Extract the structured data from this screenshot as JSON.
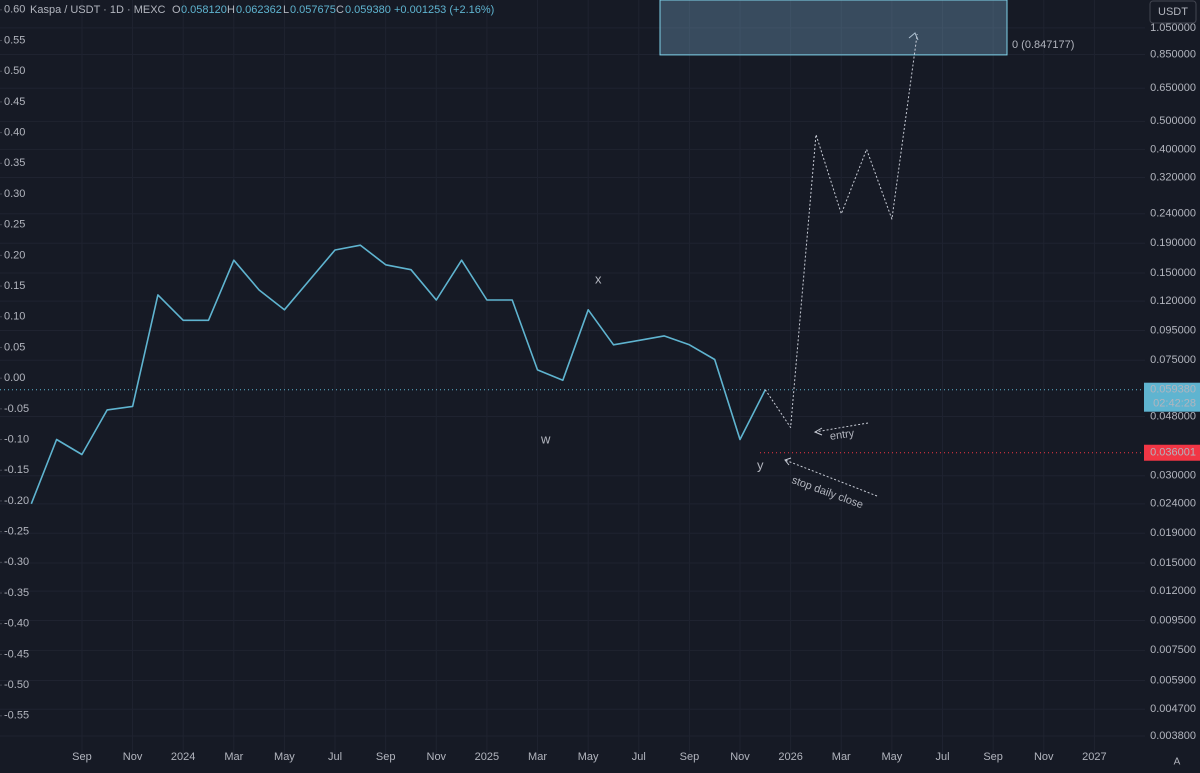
{
  "header": {
    "symbol": "Kaspa / USDT · 1D · MEXC",
    "ohlc": [
      {
        "key": "O",
        "value": "0.058120"
      },
      {
        "key": "H",
        "value": "0.062362"
      },
      {
        "key": "L",
        "value": "0.057675"
      },
      {
        "key": "C",
        "value": "0.059380"
      }
    ],
    "change": "+0.001253 (+2.16%)",
    "currency_button": "USDT",
    "scale_button": "A"
  },
  "chart_data": {
    "type": "line",
    "log_scale": true,
    "grid": true,
    "x": [
      "2023-07",
      "2023-08",
      "2023-09",
      "2023-10",
      "2023-11",
      "2023-12",
      "2024-01",
      "2024-02",
      "2024-03",
      "2024-04",
      "2024-05",
      "2024-06",
      "2024-07",
      "2024-08",
      "2024-09",
      "2024-10",
      "2024-11",
      "2024-12",
      "2025-01",
      "2025-02",
      "2025-03",
      "2025-04",
      "2025-05",
      "2025-06",
      "2025-07",
      "2025-08",
      "2025-09",
      "2025-10",
      "2025-11",
      "2025-12",
      "2026-01",
      "2026-02",
      "2026-03",
      "2026-04",
      "2026-05",
      "2026-06"
    ],
    "series": [
      {
        "color": "#5fb4d0",
        "values": [
          0.024,
          0.04,
          0.0355,
          0.0506,
          0.052,
          0.126,
          0.103,
          0.103,
          0.166,
          0.131,
          0.112,
          0.142,
          0.18,
          0.187,
          0.16,
          0.154,
          0.121,
          0.166,
          0.121,
          0.121,
          0.0695,
          0.064,
          0.112,
          0.0848,
          0.0878,
          0.091,
          0.0848,
          0.0755,
          0.04,
          0.05938,
          null,
          null,
          null,
          null,
          null,
          null
        ]
      },
      {
        "color": "#c8ccd6",
        "values": [
          null,
          null,
          null,
          null,
          null,
          null,
          null,
          null,
          null,
          null,
          null,
          null,
          null,
          null,
          null,
          null,
          null,
          null,
          null,
          null,
          null,
          null,
          null,
          null,
          null,
          null,
          null,
          null,
          null,
          0.05938,
          0.044,
          0.45,
          0.24,
          0.4,
          0.23,
          1.0
        ]
      }
    ],
    "xlim": [
      "2023-06",
      "2027-03"
    ],
    "xticks": [
      {
        "value": "2023-09",
        "label": "Sep"
      },
      {
        "value": "2023-11",
        "label": "Nov"
      },
      {
        "value": "2024-01",
        "label": "2024"
      },
      {
        "value": "2024-03",
        "label": "Mar"
      },
      {
        "value": "2024-05",
        "label": "May"
      },
      {
        "value": "2024-07",
        "label": "Jul"
      },
      {
        "value": "2024-09",
        "label": "Sep"
      },
      {
        "value": "2024-11",
        "label": "Nov"
      },
      {
        "value": "2025-01",
        "label": "2025"
      },
      {
        "value": "2025-03",
        "label": "Mar"
      },
      {
        "value": "2025-05",
        "label": "May"
      },
      {
        "value": "2025-07",
        "label": "Jul"
      },
      {
        "value": "2025-09",
        "label": "Sep"
      },
      {
        "value": "2025-11",
        "label": "Nov"
      },
      {
        "value": "2026-01",
        "label": "2026"
      },
      {
        "value": "2026-03",
        "label": "Mar"
      },
      {
        "value": "2026-05",
        "label": "May"
      },
      {
        "value": "2026-07",
        "label": "Jul"
      },
      {
        "value": "2026-09",
        "label": "Sep"
      },
      {
        "value": "2026-11",
        "label": "Nov"
      },
      {
        "value": "2027-01",
        "label": "2027"
      }
    ],
    "ylim": [
      0.00314,
      1.31
    ],
    "yticks": [
      {
        "value": 1.05,
        "label": "1.050000"
      },
      {
        "value": 0.85,
        "label": "0.850000"
      },
      {
        "value": 0.65,
        "label": "0.650000"
      },
      {
        "value": 0.5,
        "label": "0.500000"
      },
      {
        "value": 0.4,
        "label": "0.400000"
      },
      {
        "value": 0.32,
        "label": "0.320000"
      },
      {
        "value": 0.24,
        "label": "0.240000"
      },
      {
        "value": 0.19,
        "label": "0.190000"
      },
      {
        "value": 0.15,
        "label": "0.150000"
      },
      {
        "value": 0.12,
        "label": "0.120000"
      },
      {
        "value": 0.095,
        "label": "0.095000"
      },
      {
        "value": 0.075,
        "label": "0.075000"
      },
      {
        "value": 0.048,
        "label": "0.048000"
      },
      {
        "value": 0.03,
        "label": "0.030000"
      },
      {
        "value": 0.024,
        "label": "0.024000"
      },
      {
        "value": 0.019,
        "label": "0.019000"
      },
      {
        "value": 0.015,
        "label": "0.015000"
      },
      {
        "value": 0.012,
        "label": "0.012000"
      },
      {
        "value": 0.0095,
        "label": "0.009500"
      },
      {
        "value": 0.0075,
        "label": "0.007500"
      },
      {
        "value": 0.0059,
        "label": "0.005900"
      },
      {
        "value": 0.0047,
        "label": "0.004700"
      },
      {
        "value": 0.0038,
        "label": "0.003800"
      }
    ],
    "y2lim": [
      -0.622,
      0.616
    ],
    "y2ticks": [
      {
        "value": 0.6,
        "label": "0.60"
      },
      0.55,
      {
        "value": 0.5,
        "label": "0.50"
      },
      0.45,
      {
        "value": 0.4,
        "label": "0.40"
      },
      0.35,
      {
        "value": 0.3,
        "label": "0.30"
      },
      0.25,
      {
        "value": 0.2,
        "label": "0.20"
      },
      0.15,
      {
        "value": 0.1,
        "label": "0.10"
      },
      0.05,
      {
        "value": 0,
        "label": "0.00"
      },
      -0.05,
      {
        "value": -0.1,
        "label": "-0.10"
      },
      -0.15,
      {
        "value": -0.2,
        "label": "-0.20"
      },
      -0.25,
      {
        "value": -0.3,
        "label": "-0.30"
      },
      -0.35,
      {
        "value": -0.4,
        "label": "-0.40"
      },
      -0.45,
      {
        "value": -0.5,
        "label": "-0.50"
      },
      -0.55
    ],
    "last_price": {
      "value": 0.05938,
      "label": "0.059380",
      "countdown": "02:42:28"
    },
    "stop_level": 0.036001,
    "target_zone": {
      "value": 0.847177,
      "label": "0 (0.847177)"
    },
    "annotations": {
      "w": "w",
      "x": "x",
      "y": "y",
      "entry": "entry",
      "stop": "stop daily close"
    }
  }
}
